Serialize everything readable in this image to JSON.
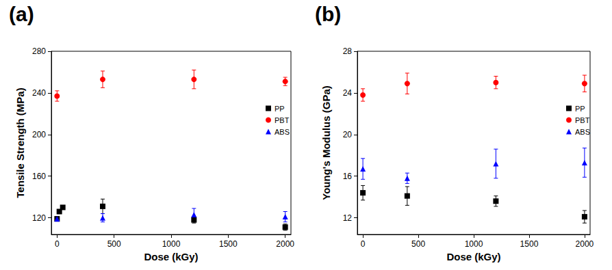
{
  "chart_data": [
    {
      "type": "scatter",
      "title": "(a)",
      "x_label": "Dose (kGy)",
      "y_label": "Tensile Strength (MPa)",
      "xlim": [
        -50,
        2050
      ],
      "xticks": [
        0,
        500,
        1000,
        1500,
        2000
      ],
      "ylim": [
        104,
        280
      ],
      "yticks": [
        120,
        160,
        200,
        240,
        280
      ],
      "grid": false,
      "legend": "right",
      "series": [
        {
          "name": "PP",
          "color": "#000000",
          "marker": "square",
          "x": [
            0,
            20,
            50,
            400,
            1200,
            2000
          ],
          "values": [
            119,
            126,
            130,
            131,
            118,
            111
          ],
          "errors": [
            2,
            2,
            1,
            7,
            3,
            3
          ]
        },
        {
          "name": "PBT",
          "color": "#ff0000",
          "marker": "circle",
          "x": [
            0,
            400,
            1200,
            2000
          ],
          "values": [
            237,
            253,
            253,
            251
          ],
          "errors": [
            5,
            8,
            9,
            4
          ]
        },
        {
          "name": "ABS",
          "color": "#0000ff",
          "marker": "triangle",
          "x": [
            0,
            400,
            1200,
            2000
          ],
          "values": [
            119,
            120,
            123,
            121
          ],
          "errors": [
            2,
            4,
            6,
            5
          ]
        }
      ]
    },
    {
      "type": "scatter",
      "title": "(b)",
      "x_label": "Dose (kGy)",
      "y_label": "Young's Modulus (GPa)",
      "xlim": [
        -50,
        2050
      ],
      "xticks": [
        0,
        500,
        1000,
        1500,
        2000
      ],
      "ylim": [
        10.4,
        28
      ],
      "yticks": [
        12,
        16,
        20,
        24,
        28
      ],
      "grid": false,
      "legend": "right",
      "series": [
        {
          "name": "PP",
          "color": "#000000",
          "marker": "square",
          "x": [
            0,
            400,
            1200,
            2000
          ],
          "values": [
            14.4,
            14.1,
            13.6,
            12.1
          ],
          "errors": [
            0.7,
            0.9,
            0.5,
            0.6
          ]
        },
        {
          "name": "PBT",
          "color": "#ff0000",
          "marker": "circle",
          "x": [
            0,
            400,
            1200,
            2000
          ],
          "values": [
            23.8,
            24.9,
            25.0,
            24.9
          ],
          "errors": [
            0.6,
            1.0,
            0.6,
            0.8
          ]
        },
        {
          "name": "ABS",
          "color": "#0000ff",
          "marker": "triangle",
          "x": [
            0,
            400,
            1200,
            2000
          ],
          "values": [
            16.7,
            15.8,
            17.2,
            17.3
          ],
          "errors": [
            1.0,
            0.5,
            1.4,
            1.4
          ]
        }
      ]
    }
  ]
}
